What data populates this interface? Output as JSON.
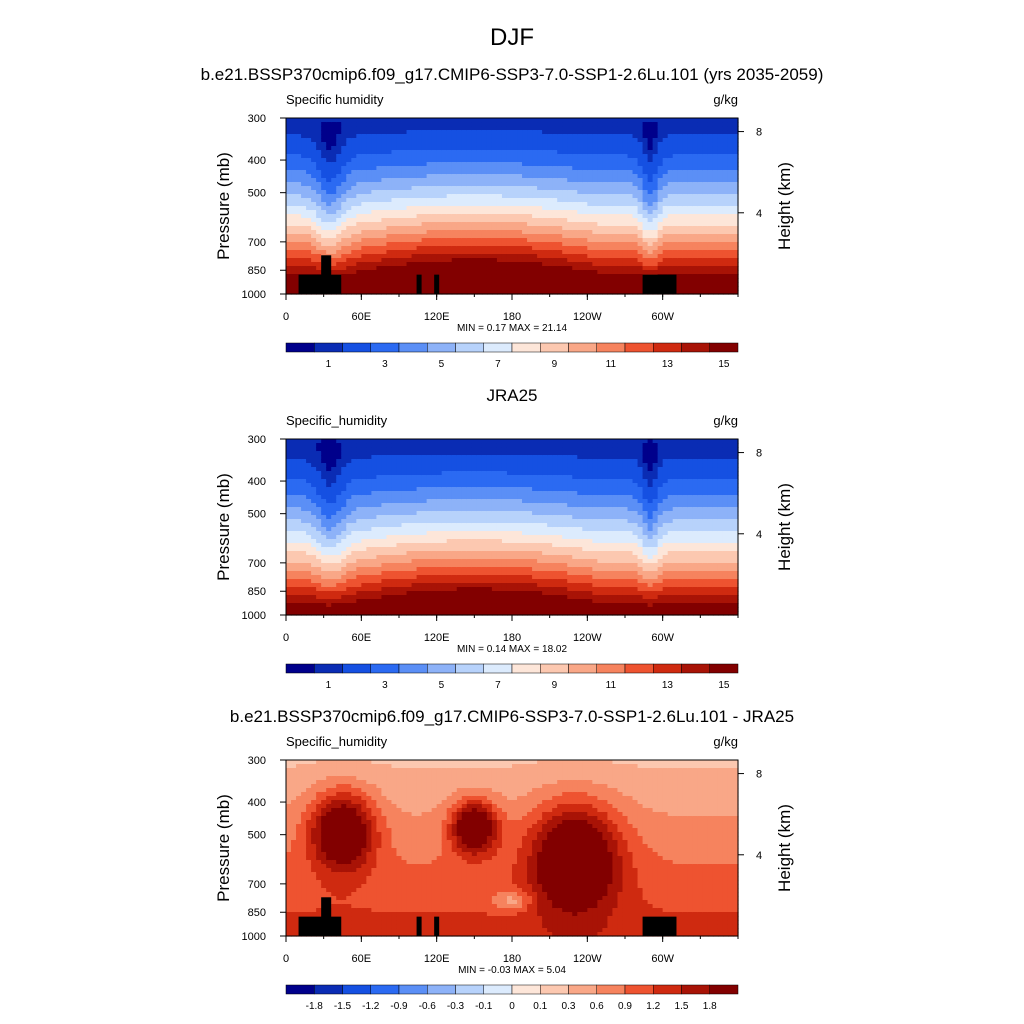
{
  "figure": {
    "title": "DJF"
  },
  "palette": {
    "sequential": [
      "#00008b",
      "#0a2cb4",
      "#1550e2",
      "#2b6af2",
      "#5b8ff6",
      "#8db2f8",
      "#b7d2fb",
      "#dcebfd",
      "#fde6d9",
      "#fcc8b0",
      "#f9a787",
      "#f6835e",
      "#ee5330",
      "#cf2a10",
      "#a81306",
      "#820000"
    ],
    "diverging": [
      "#00008b",
      "#0a2cb4",
      "#1550e2",
      "#2b6af2",
      "#5b8ff6",
      "#8db2f8",
      "#b7d2fb",
      "#dcebfd",
      "#fde6d9",
      "#fcc8b0",
      "#f9a787",
      "#f6835e",
      "#ee5330",
      "#cf2a10",
      "#a81306",
      "#820000"
    ],
    "terrain": "#000000"
  },
  "chart_data": [
    {
      "type": "heatmap",
      "title": "b.e21.BSSP370cmip6.f09_g17.CMIP6-SSP3-7.0-SSP1-2.6Lu.101 (yrs 2035-2059)",
      "left_label": "Specific humidity",
      "right_label": "g/kg",
      "ylabel": "Pressure (mb)",
      "ylabel_right": "Height (km)",
      "x_ticks": [
        "0",
        "60E",
        "120E",
        "180",
        "120W",
        "60W"
      ],
      "x_tick_values": [
        0,
        60,
        120,
        180,
        240,
        300
      ],
      "xlim": [
        0,
        360
      ],
      "y_ticks": [
        "300",
        "400",
        "500",
        "700",
        "850",
        "1000"
      ],
      "y_tick_values": [
        300,
        400,
        500,
        700,
        850,
        1000
      ],
      "ylim": [
        1000,
        300
      ],
      "y_scale": "log",
      "height_ticks": [
        "8",
        "4"
      ],
      "height_values": [
        8,
        4
      ],
      "stats": "MIN =   0.17  MAX =  21.14",
      "min": 0.17,
      "max": 21.14,
      "colorbar": {
        "levels": [
          0.5,
          1,
          2,
          3,
          4,
          5,
          6,
          7,
          8,
          9,
          10,
          11,
          12,
          13,
          14,
          15
        ],
        "labels": [
          "1",
          "3",
          "5",
          "7",
          "9",
          "11",
          "13",
          "15"
        ]
      },
      "terrain": true
    },
    {
      "type": "heatmap",
      "title": "JRA25",
      "left_label": "Specific_humidity",
      "right_label": "g/kg",
      "ylabel": "Pressure (mb)",
      "ylabel_right": "Height (km)",
      "x_ticks": [
        "0",
        "60E",
        "120E",
        "180",
        "120W",
        "60W"
      ],
      "x_tick_values": [
        0,
        60,
        120,
        180,
        240,
        300
      ],
      "xlim": [
        0,
        360
      ],
      "y_ticks": [
        "300",
        "400",
        "500",
        "700",
        "850",
        "1000"
      ],
      "y_tick_values": [
        300,
        400,
        500,
        700,
        850,
        1000
      ],
      "ylim": [
        1000,
        300
      ],
      "y_scale": "log",
      "height_ticks": [
        "8",
        "4"
      ],
      "height_values": [
        8,
        4
      ],
      "stats": "MIN =   0.14  MAX =  18.02",
      "min": 0.14,
      "max": 18.02,
      "colorbar": {
        "levels": [
          0.5,
          1,
          2,
          3,
          4,
          5,
          6,
          7,
          8,
          9,
          10,
          11,
          12,
          13,
          14,
          15
        ],
        "labels": [
          "1",
          "3",
          "5",
          "7",
          "9",
          "11",
          "13",
          "15"
        ]
      },
      "terrain": false
    },
    {
      "type": "heatmap",
      "title": "b.e21.BSSP370cmip6.f09_g17.CMIP6-SSP3-7.0-SSP1-2.6Lu.101 - JRA25",
      "left_label": "Specific_humidity",
      "right_label": "g/kg",
      "ylabel": "Pressure (mb)",
      "ylabel_right": "Height (km)",
      "x_ticks": [
        "0",
        "60E",
        "120E",
        "180",
        "120W",
        "60W"
      ],
      "x_tick_values": [
        0,
        60,
        120,
        180,
        240,
        300
      ],
      "xlim": [
        0,
        360
      ],
      "y_ticks": [
        "300",
        "400",
        "500",
        "700",
        "850",
        "1000"
      ],
      "y_tick_values": [
        300,
        400,
        500,
        700,
        850,
        1000
      ],
      "ylim": [
        1000,
        300
      ],
      "y_scale": "log",
      "height_ticks": [
        "8",
        "4"
      ],
      "height_values": [
        8,
        4
      ],
      "stats": "MIN =  -0.03  MAX =   5.04",
      "min": -0.03,
      "max": 5.04,
      "colorbar": {
        "levels": [
          -1.8,
          -1.5,
          -1.2,
          -0.9,
          -0.6,
          -0.3,
          -0.1,
          0,
          0.1,
          0.3,
          0.6,
          0.9,
          1.2,
          1.5,
          1.8
        ],
        "labels": [
          "-1.8",
          "-1.5",
          "-1.2",
          "-0.9",
          "-0.6",
          "-0.3",
          "-0.1",
          "0",
          "0.1",
          "0.3",
          "0.6",
          "0.9",
          "1.2",
          "1.5",
          "1.8"
        ]
      },
      "terrain": true
    }
  ]
}
